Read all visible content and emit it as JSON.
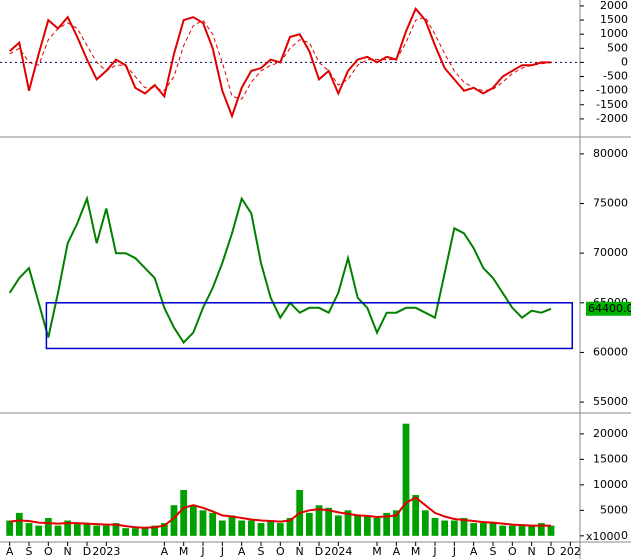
{
  "chart_data": [
    {
      "type": "line",
      "x": [
        0,
        0.5,
        1,
        1.5,
        2,
        2.5,
        3,
        3.5,
        4,
        4.5,
        5,
        5.5,
        6,
        6.5,
        7,
        7.5,
        8,
        8.5,
        9,
        9.5,
        10,
        10.5,
        11,
        11.5,
        12,
        12.5,
        13,
        13.5,
        14,
        14.5,
        15,
        15.5,
        16,
        16.5,
        17,
        17.5,
        18,
        18.5,
        19,
        19.5,
        20,
        20.5,
        21,
        21.5,
        22,
        22.5,
        23,
        23.5,
        24,
        24.5,
        25,
        25.5,
        26,
        26.5,
        27,
        27.5,
        28
      ],
      "series": [
        {
          "color": "#e00000",
          "dashed": false,
          "values": [
            400,
            700,
            -1000,
            300,
            1500,
            1200,
            1600,
            900,
            100,
            -600,
            -300,
            100,
            -100,
            -900,
            -1100,
            -800,
            -1200,
            300,
            1500,
            1600,
            1400,
            500,
            -1000,
            -1900,
            -900,
            -300,
            -200,
            100,
            0,
            900,
            1000,
            400,
            -600,
            -300,
            -1100,
            -300,
            100,
            200,
            0,
            200,
            100,
            1100,
            1900,
            1500,
            600,
            -200,
            -600,
            -1000,
            -900,
            -1100,
            -900,
            -500,
            -300,
            -100,
            -100,
            0,
            0
          ]
        },
        {
          "color": "#e00000",
          "dashed": true,
          "values": [
            300,
            500,
            0,
            -100,
            800,
            1200,
            1400,
            1200,
            600,
            0,
            -300,
            -100,
            -100,
            -500,
            -900,
            -900,
            -1000,
            -500,
            600,
            1300,
            1500,
            1000,
            0,
            -1200,
            -1300,
            -700,
            -300,
            -100,
            0,
            500,
            800,
            700,
            0,
            -300,
            -800,
            -600,
            -100,
            100,
            100,
            100,
            100,
            700,
            1500,
            1600,
            1000,
            300,
            -300,
            -700,
            -900,
            -1000,
            -950,
            -700,
            -400,
            -200,
            -100,
            -50,
            0
          ]
        }
      ],
      "xlim": [
        -0.5,
        29.5
      ],
      "ylim": [
        -2570,
        2210
      ],
      "yticks": [
        -2000,
        -1500,
        -1000,
        -500,
        0,
        500,
        1000,
        1500,
        2000
      ],
      "ref_line": 0
    },
    {
      "type": "line",
      "x": [
        0,
        0.5,
        1,
        1.5,
        2,
        2.5,
        3,
        3.5,
        4,
        4.5,
        5,
        5.5,
        6,
        6.5,
        7,
        7.5,
        8,
        8.5,
        9,
        9.5,
        10,
        10.5,
        11,
        11.5,
        12,
        12.5,
        13,
        13.5,
        14,
        14.5,
        15,
        15.5,
        16,
        16.5,
        17,
        17.5,
        18,
        18.5,
        19,
        19.5,
        20,
        20.5,
        21,
        21.5,
        22,
        22.5,
        23,
        23.5,
        24,
        24.5,
        25,
        25.5,
        26,
        26.5,
        27,
        27.5,
        28
      ],
      "series": [
        {
          "color": "#008000",
          "dashed": false,
          "values": [
            66000,
            67500,
            68500,
            65000,
            61500,
            66000,
            71000,
            73000,
            75500,
            71000,
            74500,
            70000,
            70000,
            69500,
            68500,
            67500,
            64500,
            62500,
            61000,
            62000,
            64500,
            66500,
            69000,
            72000,
            75500,
            74000,
            69000,
            65500,
            63500,
            65000,
            64000,
            64500,
            64500,
            64000,
            66000,
            69500,
            65500,
            64500,
            62000,
            64000,
            64000,
            64500,
            64500,
            64000,
            63500,
            68000,
            72500,
            72000,
            70500,
            68500,
            67500,
            66000,
            64500,
            63500,
            64200,
            64000,
            64400
          ]
        }
      ],
      "xlim": [
        -0.5,
        29.5
      ],
      "ylim": [
        54000,
        81600
      ],
      "yticks": [
        55000,
        60000,
        65000,
        70000,
        75000,
        80000
      ],
      "range_box": {
        "x": [
          1.9,
          29.1
        ],
        "y": [
          60400,
          65000
        ],
        "color": "#0000cc"
      },
      "last_label": "64400.00",
      "last_value": 64400
    },
    {
      "type": "bar",
      "x": [
        0,
        0.5,
        1,
        1.5,
        2,
        2.5,
        3,
        3.5,
        4,
        4.5,
        5,
        5.5,
        6,
        6.5,
        7,
        7.5,
        8,
        8.5,
        9,
        9.5,
        10,
        10.5,
        11,
        11.5,
        12,
        12.5,
        13,
        13.5,
        14,
        14.5,
        15,
        15.5,
        16,
        16.5,
        17,
        17.5,
        18,
        18.5,
        19,
        19.5,
        20,
        20.5,
        21,
        21.5,
        22,
        22.5,
        23,
        23.5,
        24,
        24.5,
        25,
        25.5,
        26,
        26.5,
        27,
        27.5,
        28
      ],
      "series": [
        {
          "color": "#00a000",
          "kind": "bar",
          "values": [
            3000,
            4500,
            2500,
            2000,
            3500,
            2000,
            3000,
            2500,
            2500,
            2000,
            2000,
            2500,
            1500,
            1500,
            1500,
            2000,
            2500,
            6000,
            9000,
            6000,
            5000,
            4500,
            3000,
            4000,
            3000,
            3000,
            2500,
            3000,
            2500,
            3500,
            9000,
            4500,
            6000,
            5500,
            4000,
            5000,
            4000,
            4000,
            3500,
            4500,
            5000,
            22000,
            8000,
            5000,
            3500,
            3000,
            3000,
            3500,
            2500,
            2500,
            2500,
            2000,
            2000,
            2000,
            2000,
            2500,
            2000
          ]
        },
        {
          "color": "#e00000",
          "kind": "line",
          "values": [
            2800,
            3000,
            2900,
            2600,
            2500,
            2400,
            2500,
            2500,
            2400,
            2300,
            2200,
            2200,
            1900,
            1700,
            1600,
            1700,
            2000,
            3500,
            5500,
            6000,
            5500,
            4800,
            4000,
            3800,
            3500,
            3200,
            3000,
            2900,
            2800,
            3000,
            4500,
            5000,
            5200,
            5000,
            4600,
            4300,
            4000,
            3900,
            3700,
            3800,
            4000,
            6500,
            7500,
            6000,
            4500,
            3800,
            3300,
            3100,
            2900,
            2700,
            2600,
            2400,
            2200,
            2100,
            2000,
            2000,
            2000
          ]
        }
      ],
      "xlim": [
        -0.5,
        29.5
      ],
      "ylim": [
        -1800,
        23900
      ],
      "yticks": [
        0,
        5000,
        10000,
        15000,
        20000
      ],
      "unit_label": "x1000",
      "xticks": [
        {
          "value": 0,
          "label": "A"
        },
        {
          "value": 1,
          "label": "S"
        },
        {
          "value": 2,
          "label": "O"
        },
        {
          "value": 3,
          "label": "N"
        },
        {
          "value": 4,
          "label": "D"
        },
        {
          "value": 5,
          "label": "2023"
        },
        {
          "value": 8,
          "label": "A"
        },
        {
          "value": 9,
          "label": "M"
        },
        {
          "value": 10,
          "label": "J"
        },
        {
          "value": 11,
          "label": "J"
        },
        {
          "value": 12,
          "label": "A"
        },
        {
          "value": 13,
          "label": "S"
        },
        {
          "value": 14,
          "label": "O"
        },
        {
          "value": 15,
          "label": "N"
        },
        {
          "value": 16,
          "label": "D"
        },
        {
          "value": 17,
          "label": "2024"
        },
        {
          "value": 19,
          "label": "M"
        },
        {
          "value": 20,
          "label": "A"
        },
        {
          "value": 21,
          "label": "M"
        },
        {
          "value": 22,
          "label": "J"
        },
        {
          "value": 23,
          "label": "J"
        },
        {
          "value": 24,
          "label": "A"
        },
        {
          "value": 25,
          "label": "S"
        },
        {
          "value": 26,
          "label": "O"
        },
        {
          "value": 27,
          "label": "N"
        },
        {
          "value": 28,
          "label": "D"
        },
        {
          "value": 29,
          "label": "202"
        }
      ]
    }
  ]
}
